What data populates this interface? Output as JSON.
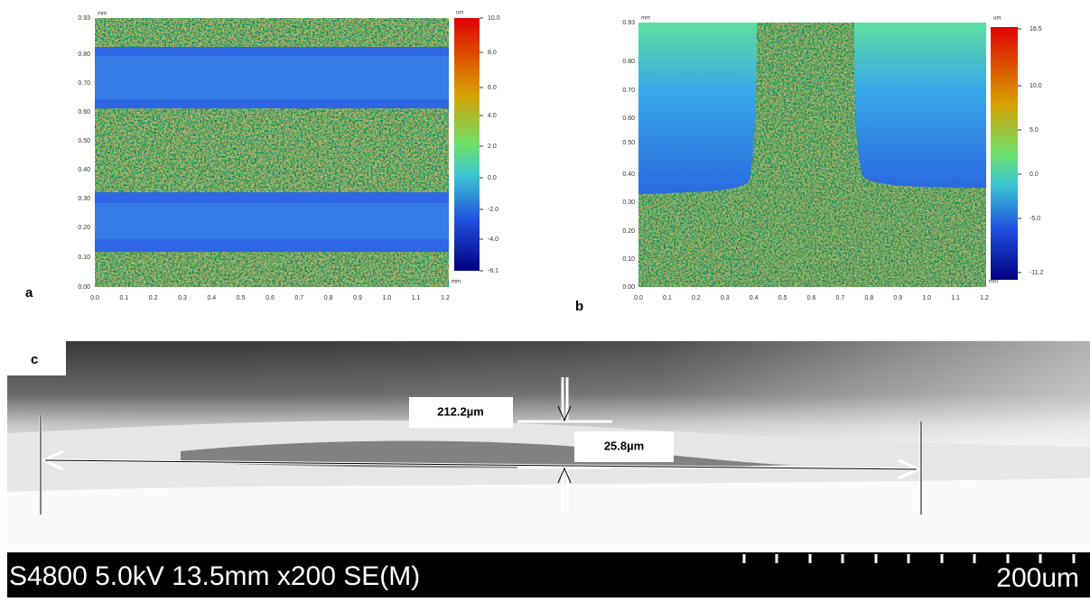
{
  "panels": [
    {
      "label": "a",
      "y_unit": "mm",
      "x_unit": "mm",
      "colorbar_unit": "um",
      "yticks": [
        "0.93",
        "0.80",
        "0.70",
        "0.60",
        "0.50",
        "0.40",
        "0.30",
        "0.20",
        "0.10",
        "0.00"
      ],
      "xticks": [
        "0.0",
        "0.1",
        "0.2",
        "0.3",
        "0.4",
        "0.5",
        "0.6",
        "0.7",
        "0.8",
        "0.9",
        "1.0",
        "1.1",
        "1.2"
      ],
      "colorbar_ticks": [
        "10.0",
        "8.0",
        "6.0",
        "4.0",
        "2.0",
        "0.0",
        "-2.0",
        "-4.0",
        "-6.1"
      ]
    },
    {
      "label": "b",
      "y_unit": "mm",
      "x_unit": "mm",
      "colorbar_unit": "um",
      "yticks": [
        "0.93",
        "0.80",
        "0.70",
        "0.60",
        "0.50",
        "0.40",
        "0.30",
        "0.20",
        "0.10",
        "0.00"
      ],
      "xticks": [
        "0.0",
        "0.1",
        "0.2",
        "0.3",
        "0.4",
        "0.5",
        "0.6",
        "0.7",
        "0.8",
        "0.9",
        "1.0",
        "1.1",
        "1.2"
      ],
      "colorbar_ticks": [
        "16.5",
        "10.0",
        "5.0",
        "0.0",
        "-5.0",
        "-11.2"
      ]
    },
    {
      "label": "c",
      "measurements": [
        "212.2µm",
        "25.8µm"
      ],
      "footer": "S4800 5.0kV 13.5mm x200 SE(M)",
      "scale_label": "200um"
    }
  ]
}
